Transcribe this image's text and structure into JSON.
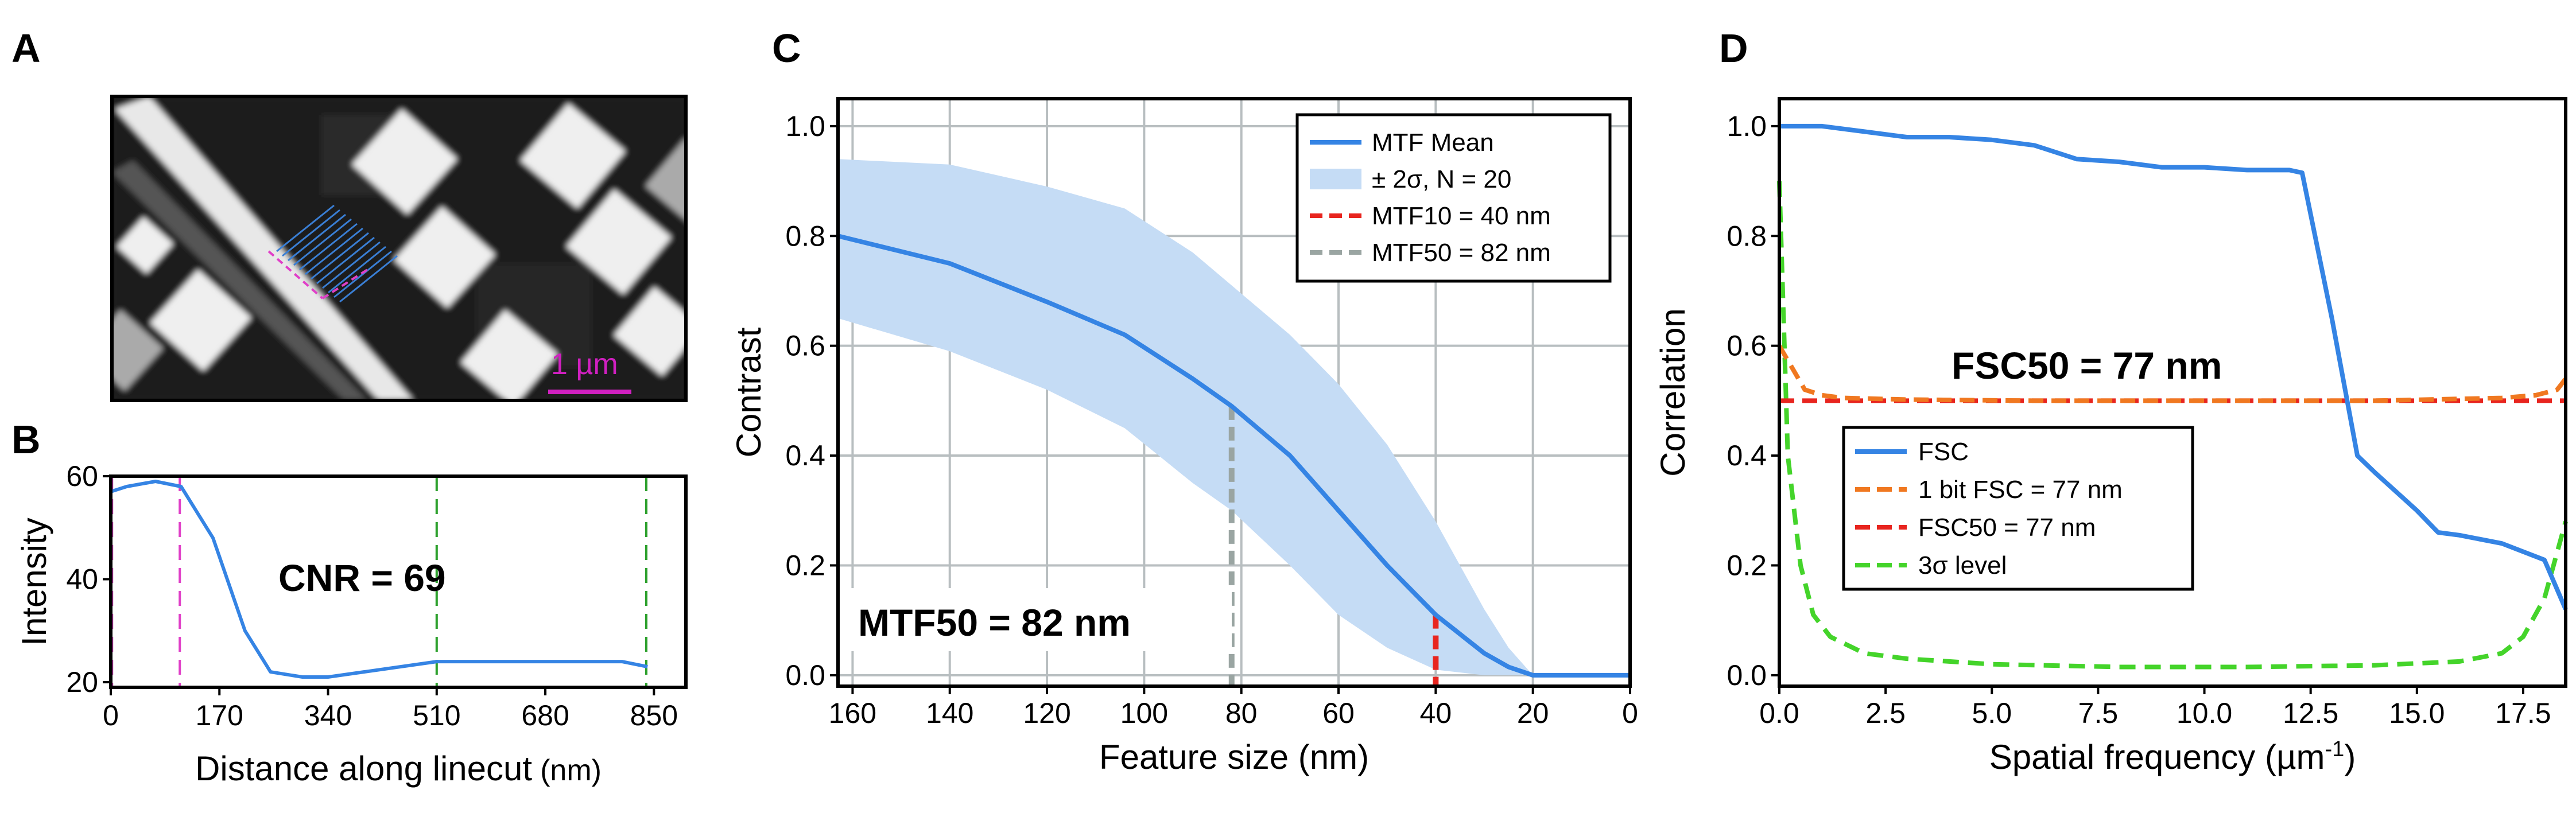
{
  "panels": {
    "A": {
      "label": "A",
      "scalebar_text": "1 µm"
    },
    "B": {
      "label": "B"
    },
    "C": {
      "label": "C"
    },
    "D": {
      "label": "D"
    }
  },
  "chart_data": [
    {
      "panel": "B",
      "type": "line",
      "xlabel": "Distance along linecut",
      "xlabel_unit": "(nm)",
      "ylabel": "Intensity",
      "xlim": [
        0,
        900
      ],
      "ylim": [
        19,
        60
      ],
      "xticks": [
        0,
        170,
        340,
        510,
        680,
        850
      ],
      "yticks": [
        20,
        40,
        60
      ],
      "series": [
        {
          "x": [
            0,
            25,
            70,
            110,
            160,
            210,
            245,
            250,
            300,
            340,
            510,
            680,
            800,
            840
          ],
          "y": [
            57,
            58,
            59,
            58,
            48,
            30,
            23,
            22,
            21,
            21,
            24,
            24,
            24,
            23
          ]
        }
      ],
      "vlines": [
        {
          "x": 2,
          "color": "#e040c8"
        },
        {
          "x": 108,
          "color": "#e040c8"
        },
        {
          "x": 510,
          "color": "#2ca02c"
        },
        {
          "x": 838,
          "color": "#2ca02c"
        }
      ],
      "annotation": "CNR = 69",
      "colors": {
        "line": "#3584e4"
      }
    },
    {
      "panel": "C",
      "type": "line",
      "xlabel": "Feature size (nm)",
      "ylabel": "Contrast",
      "xlim": [
        163,
        0
      ],
      "ylim": [
        -0.02,
        1.05
      ],
      "xticks": [
        160,
        140,
        120,
        100,
        80,
        60,
        40,
        20,
        0
      ],
      "yticks": [
        0.0,
        0.2,
        0.4,
        0.6,
        0.8,
        1.0
      ],
      "ytick_labels": [
        "0.0",
        "0.2",
        "0.4",
        "0.6",
        "0.8",
        "1.0"
      ],
      "grid": true,
      "series": [
        {
          "name": "MTF Mean",
          "x": [
            163,
            140,
            120,
            104,
            90,
            82,
            70,
            60,
            50,
            40,
            30,
            25,
            20,
            10,
            0
          ],
          "y": [
            0.8,
            0.75,
            0.68,
            0.62,
            0.54,
            0.49,
            0.4,
            0.3,
            0.2,
            0.11,
            0.04,
            0.015,
            0.0,
            0.0,
            0.0
          ]
        }
      ],
      "band": {
        "name": "± 2σ, N = 20",
        "x": [
          163,
          140,
          120,
          104,
          90,
          82,
          70,
          60,
          50,
          40,
          30,
          25,
          20,
          10,
          0
        ],
        "upper": [
          0.94,
          0.93,
          0.89,
          0.85,
          0.77,
          0.71,
          0.62,
          0.53,
          0.42,
          0.28,
          0.12,
          0.05,
          0.0,
          0.0,
          0.0
        ],
        "lower": [
          0.65,
          0.59,
          0.52,
          0.45,
          0.35,
          0.3,
          0.2,
          0.11,
          0.05,
          0.01,
          0.0,
          0.0,
          0.0,
          0.0,
          0.0
        ]
      },
      "markers": [
        {
          "name": "MTF10 = 40 nm",
          "x": 40,
          "y_top": 0.11,
          "color": "#e8251f"
        },
        {
          "name": "MTF50 = 82 nm",
          "x": 82,
          "y_top": 0.49,
          "color": "#9aa5a2"
        }
      ],
      "annotation": "MTF50 = 82 nm",
      "legend_position": "top-right",
      "colors": {
        "line": "#3584e4",
        "band": "#c5dcf5"
      }
    },
    {
      "panel": "D",
      "type": "line",
      "xlabel": "Spatial frequency (µm",
      "xlabel_sup": "-1",
      "xlabel_end": ")",
      "ylabel": "Correlation",
      "xlim": [
        0,
        18.5
      ],
      "ylim": [
        -0.02,
        1.05
      ],
      "xticks": [
        0.0,
        2.5,
        5.0,
        7.5,
        10.0,
        12.5,
        15.0,
        17.5
      ],
      "xtick_labels": [
        "0.0",
        "2.5",
        "5.0",
        "7.5",
        "10.0",
        "12.5",
        "15.0",
        "17.5"
      ],
      "yticks": [
        0.0,
        0.2,
        0.4,
        0.6,
        0.8,
        1.0
      ],
      "ytick_labels": [
        "0.0",
        "0.2",
        "0.4",
        "0.6",
        "0.8",
        "1.0"
      ],
      "series": [
        {
          "name": "FSC",
          "style": "solid",
          "color": "#3584e4",
          "x": [
            0,
            1,
            2,
            3,
            4,
            5,
            6,
            7,
            8,
            9,
            10,
            11,
            12,
            12.3,
            13,
            13.6,
            14,
            15,
            15.5,
            16,
            17,
            18,
            18.5
          ],
          "y": [
            1.0,
            1.0,
            0.99,
            0.98,
            0.98,
            0.975,
            0.965,
            0.94,
            0.935,
            0.925,
            0.925,
            0.92,
            0.92,
            0.915,
            0.65,
            0.4,
            0.37,
            0.3,
            0.26,
            0.255,
            0.24,
            0.21,
            0.12
          ]
        },
        {
          "name": "1 bit FSC = 77 nm",
          "style": "dashed",
          "color": "#f07820",
          "x": [
            0,
            0.3,
            0.6,
            1.0,
            1.5,
            3,
            6,
            10,
            14,
            17,
            17.8,
            18.3,
            18.5
          ],
          "y": [
            0.6,
            0.56,
            0.52,
            0.51,
            0.505,
            0.502,
            0.5,
            0.5,
            0.5,
            0.505,
            0.51,
            0.52,
            0.54
          ]
        },
        {
          "name": "FSC50 = 77 nm",
          "style": "dashed",
          "color": "#e8251f",
          "x": [
            0,
            18.5
          ],
          "y": [
            0.5,
            0.5
          ]
        },
        {
          "name": "3σ level",
          "style": "dashed",
          "color": "#44d42a",
          "x": [
            0,
            0.2,
            0.5,
            0.8,
            1.2,
            2,
            3,
            5,
            8,
            11,
            14,
            16,
            17,
            17.5,
            18,
            18.5
          ],
          "y": [
            0.9,
            0.4,
            0.2,
            0.11,
            0.07,
            0.04,
            0.03,
            0.02,
            0.015,
            0.015,
            0.018,
            0.025,
            0.04,
            0.07,
            0.14,
            0.28
          ]
        }
      ],
      "annotation": "FSC50 = 77 nm",
      "legend_position": "lower-left"
    }
  ]
}
